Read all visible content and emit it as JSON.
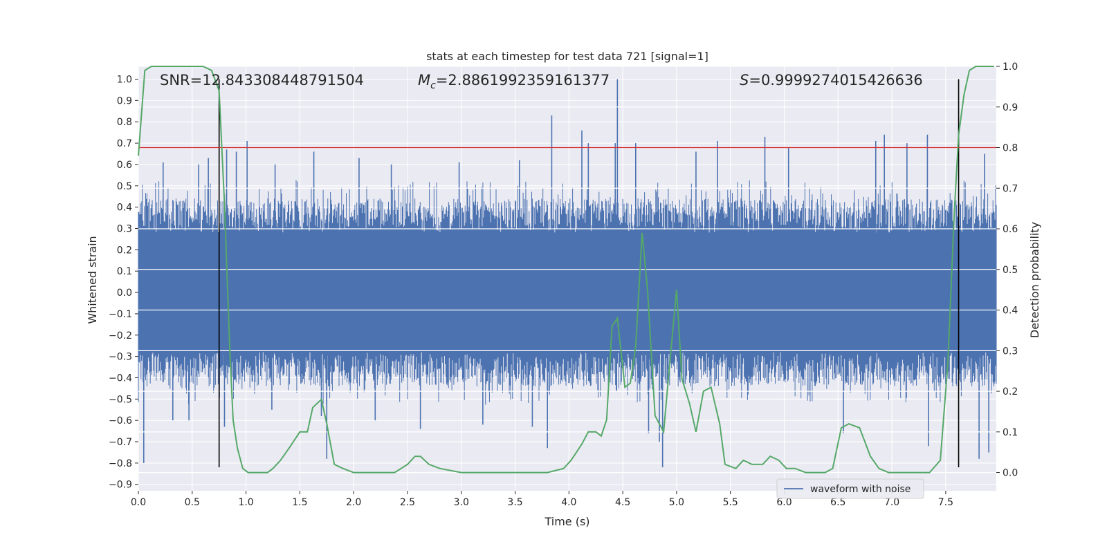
{
  "chart_data": {
    "type": "line",
    "title": "stats at each timestep for test data 721 [signal=1]",
    "xlabel": "Time (s)",
    "ylabel": "Whitened strain",
    "y2label": "Detection probability",
    "xlim": [
      0.0,
      7.97
    ],
    "ylim": [
      -0.93,
      1.06
    ],
    "y2lim": [
      -0.045,
      1.0
    ],
    "xticks": [
      "0.0",
      "0.5",
      "1.0",
      "1.5",
      "2.0",
      "2.5",
      "3.0",
      "3.5",
      "4.0",
      "4.5",
      "5.0",
      "5.5",
      "6.0",
      "6.5",
      "7.0",
      "7.5"
    ],
    "yticks": [
      "1.0",
      "0.9",
      "0.8",
      "0.7",
      "0.6",
      "0.5",
      "0.4",
      "0.3",
      "0.2",
      "0.1",
      "0.0",
      "−0.1",
      "−0.2",
      "−0.3",
      "−0.4",
      "−0.5",
      "−0.6",
      "−0.7",
      "−0.8",
      "−0.9"
    ],
    "y2ticks": [
      "1.0",
      "0.9",
      "0.8",
      "0.7",
      "0.6",
      "0.5",
      "0.4",
      "0.3",
      "0.2",
      "0.1",
      "0.0"
    ],
    "annotations": {
      "snr": "SNR=12.843308448791504",
      "mc_symbol": "M",
      "mc_sub": "c",
      "mc_value": "=2.8861992359161377",
      "s_symbol": "S",
      "s_value": "=0.9999274015426636"
    },
    "threshold": {
      "value": 0.8,
      "axis": "y2",
      "color": "#d62728"
    },
    "markers": {
      "x": [
        0.75,
        7.62
      ],
      "y_range": [
        -0.82,
        1.0
      ],
      "color": "#000000"
    },
    "series": [
      {
        "name": "waveform with noise",
        "axis": "y",
        "color": "#4c72b0",
        "style": "dense-noise",
        "core_amplitude": 0.28,
        "typical_peak": 0.45,
        "spikes": [
          {
            "x": 0.05,
            "y": -0.8
          },
          {
            "x": 0.23,
            "y": 0.61
          },
          {
            "x": 0.32,
            "y": -0.6
          },
          {
            "x": 0.47,
            "y": -0.6
          },
          {
            "x": 0.56,
            "y": 0.6
          },
          {
            "x": 0.65,
            "y": 0.63
          },
          {
            "x": 0.8,
            "y": -0.63
          },
          {
            "x": 0.82,
            "y": 0.67
          },
          {
            "x": 0.91,
            "y": 0.66
          },
          {
            "x": 1.01,
            "y": 0.71
          },
          {
            "x": 1.24,
            "y": -0.55
          },
          {
            "x": 1.27,
            "y": 0.6
          },
          {
            "x": 1.63,
            "y": 0.66
          },
          {
            "x": 1.7,
            "y": -0.58
          },
          {
            "x": 1.75,
            "y": -0.78
          },
          {
            "x": 2.05,
            "y": 0.63
          },
          {
            "x": 2.2,
            "y": -0.6
          },
          {
            "x": 2.35,
            "y": 0.6
          },
          {
            "x": 2.62,
            "y": -0.64
          },
          {
            "x": 2.98,
            "y": 0.61
          },
          {
            "x": 3.2,
            "y": -0.62
          },
          {
            "x": 3.54,
            "y": 0.62
          },
          {
            "x": 3.66,
            "y": -0.63
          },
          {
            "x": 3.8,
            "y": -0.73
          },
          {
            "x": 3.84,
            "y": 0.83
          },
          {
            "x": 4.12,
            "y": 0.76
          },
          {
            "x": 4.18,
            "y": 0.7
          },
          {
            "x": 4.43,
            "y": 0.7
          },
          {
            "x": 4.45,
            "y": 1.0
          },
          {
            "x": 4.62,
            "y": 0.7
          },
          {
            "x": 4.74,
            "y": -0.66
          },
          {
            "x": 4.84,
            "y": -0.7
          },
          {
            "x": 4.87,
            "y": -0.82
          },
          {
            "x": 5.18,
            "y": 0.66
          },
          {
            "x": 5.38,
            "y": 0.71
          },
          {
            "x": 5.82,
            "y": 0.73
          },
          {
            "x": 6.04,
            "y": 0.68
          },
          {
            "x": 6.55,
            "y": -0.66
          },
          {
            "x": 6.85,
            "y": 0.71
          },
          {
            "x": 6.93,
            "y": 0.74
          },
          {
            "x": 7.14,
            "y": 0.7
          },
          {
            "x": 7.33,
            "y": 0.74
          },
          {
            "x": 7.34,
            "y": -0.72
          },
          {
            "x": 7.81,
            "y": -0.78
          },
          {
            "x": 7.86,
            "y": 0.65
          },
          {
            "x": 7.9,
            "y": -0.75
          }
        ]
      },
      {
        "name": "",
        "axis": "y2",
        "color": "#55a868",
        "x": [
          0.0,
          0.06,
          0.12,
          0.2,
          0.4,
          0.6,
          0.68,
          0.75,
          0.8,
          0.85,
          0.88,
          0.92,
          0.97,
          1.02,
          1.1,
          1.2,
          1.25,
          1.32,
          1.4,
          1.5,
          1.57,
          1.62,
          1.7,
          1.75,
          1.82,
          1.9,
          2.0,
          2.2,
          2.38,
          2.5,
          2.57,
          2.62,
          2.7,
          2.8,
          3.0,
          3.2,
          3.4,
          3.6,
          3.8,
          3.95,
          4.02,
          4.12,
          4.18,
          4.25,
          4.3,
          4.35,
          4.4,
          4.45,
          4.52,
          4.57,
          4.62,
          4.68,
          4.73,
          4.8,
          4.88,
          4.93,
          5.0,
          5.05,
          5.12,
          5.18,
          5.25,
          5.32,
          5.4,
          5.45,
          5.55,
          5.62,
          5.7,
          5.8,
          5.87,
          5.95,
          6.02,
          6.1,
          6.2,
          6.3,
          6.38,
          6.45,
          6.53,
          6.6,
          6.7,
          6.8,
          6.88,
          6.97,
          7.05,
          7.2,
          7.35,
          7.45,
          7.52,
          7.58,
          7.62,
          7.67,
          7.72,
          7.78,
          7.85,
          7.95
        ],
        "y": [
          0.78,
          0.99,
          1.0,
          1.0,
          1.0,
          1.0,
          0.99,
          0.94,
          0.66,
          0.3,
          0.13,
          0.06,
          0.01,
          0.0,
          0.0,
          0.0,
          0.01,
          0.03,
          0.06,
          0.1,
          0.1,
          0.16,
          0.18,
          0.12,
          0.02,
          0.01,
          0.0,
          0.0,
          0.0,
          0.02,
          0.04,
          0.04,
          0.02,
          0.01,
          0.0,
          0.0,
          0.0,
          0.0,
          0.0,
          0.01,
          0.03,
          0.07,
          0.1,
          0.1,
          0.09,
          0.13,
          0.36,
          0.38,
          0.21,
          0.22,
          0.31,
          0.59,
          0.45,
          0.14,
          0.1,
          0.25,
          0.45,
          0.23,
          0.17,
          0.1,
          0.2,
          0.21,
          0.12,
          0.02,
          0.01,
          0.03,
          0.02,
          0.02,
          0.04,
          0.03,
          0.01,
          0.01,
          0.0,
          0.0,
          0.0,
          0.01,
          0.11,
          0.12,
          0.11,
          0.04,
          0.01,
          0.0,
          0.0,
          0.0,
          0.0,
          0.03,
          0.27,
          0.64,
          0.83,
          0.93,
          0.99,
          1.0,
          1.0,
          1.0
        ]
      }
    ],
    "legend": {
      "position": "lower-right",
      "entries": [
        "waveform with noise"
      ]
    },
    "grid": true
  }
}
